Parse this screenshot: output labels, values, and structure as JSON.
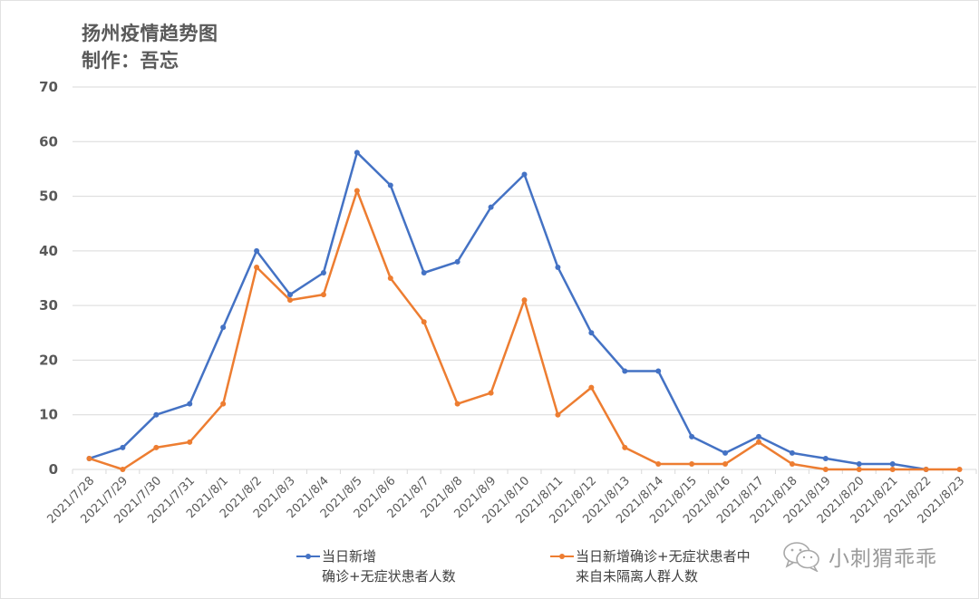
{
  "header": {
    "title": "扬州疫情趋势图",
    "subtitle": "制作：吾忘"
  },
  "legend": {
    "series_1_line1": "当日新增",
    "series_1_line2": "确诊+无症状患者人数",
    "series_2_line1": "当日新增确诊+无症状患者中",
    "series_2_line2": "来自未隔离人群人数"
  },
  "watermark": {
    "icon": "wechat-icon",
    "text": "小刺猬乖乖"
  },
  "colors": {
    "series_1": "#4472C4",
    "series_2": "#ED7D31",
    "grid": "#d9d9d9",
    "axis_text": "#595959"
  },
  "chart_data": {
    "type": "line",
    "title": "扬州疫情趋势图",
    "subtitle": "制作：吾忘",
    "xlabel": "",
    "ylabel": "",
    "ylim": [
      0,
      70
    ],
    "yticks": [
      0,
      10,
      20,
      30,
      40,
      50,
      60,
      70
    ],
    "grid": true,
    "legend_position": "bottom",
    "categories": [
      "2021/7/28",
      "2021/7/29",
      "2021/7/30",
      "2021/7/31",
      "2021/8/1",
      "2021/8/2",
      "2021/8/3",
      "2021/8/4",
      "2021/8/5",
      "2021/8/6",
      "2021/8/7",
      "2021/8/8",
      "2021/8/9",
      "2021/8/10",
      "2021/8/11",
      "2021/8/12",
      "2021/8/13",
      "2021/8/14",
      "2021/8/15",
      "2021/8/16",
      "2021/8/17",
      "2021/8/18",
      "2021/8/19",
      "2021/8/20",
      "2021/8/21",
      "2021/8/22",
      "2021/8/23"
    ],
    "series": [
      {
        "name": "当日新增确诊+无症状患者人数",
        "color": "#4472C4",
        "values": [
          2,
          4,
          10,
          12,
          26,
          40,
          32,
          36,
          58,
          52,
          36,
          38,
          48,
          54,
          37,
          25,
          18,
          18,
          6,
          3,
          6,
          3,
          2,
          1,
          1,
          0,
          null
        ]
      },
      {
        "name": "当日新增确诊+无症状患者中来自未隔离人群人数",
        "color": "#ED7D31",
        "values": [
          2,
          0,
          4,
          5,
          12,
          37,
          31,
          32,
          51,
          35,
          27,
          12,
          14,
          31,
          10,
          15,
          4,
          1,
          1,
          1,
          5,
          1,
          0,
          0,
          0,
          0,
          0
        ]
      }
    ]
  }
}
